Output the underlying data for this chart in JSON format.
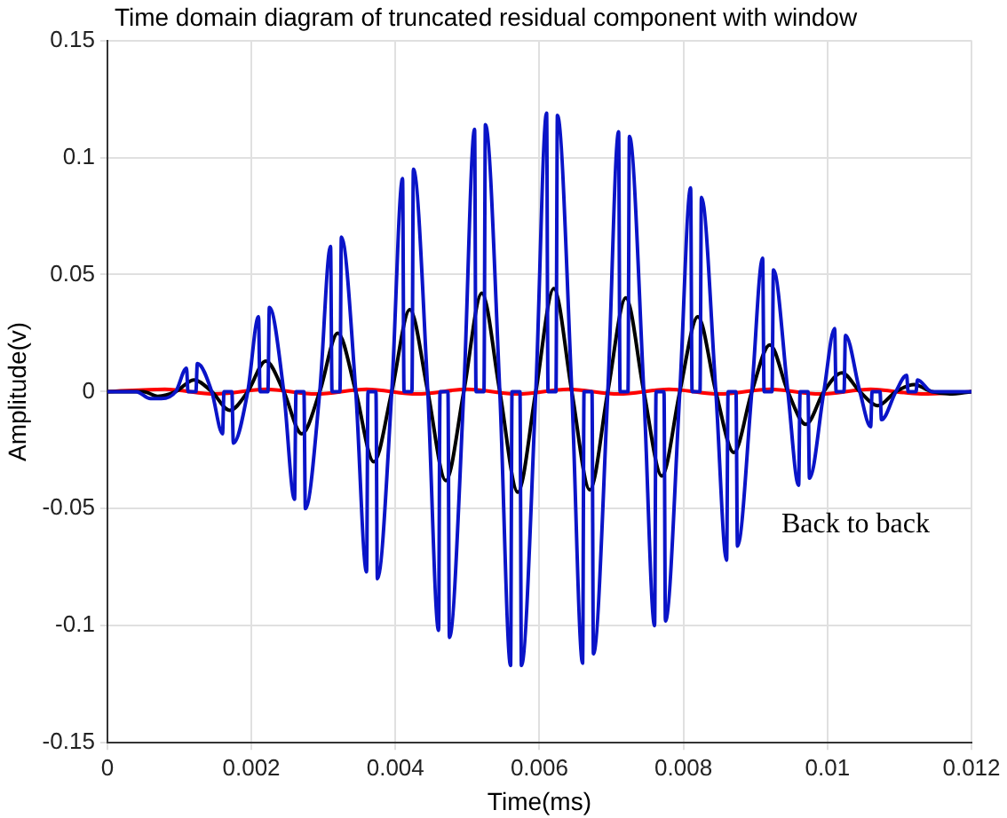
{
  "chart_data": {
    "type": "line",
    "title": "Time domain diagram of truncated residual component with window",
    "xlabel": "Time(ms)",
    "ylabel": "Amplitude(v)",
    "xlim": [
      0,
      0.012
    ],
    "xticks": [
      0,
      0.002,
      0.004,
      0.006,
      0.008,
      0.01,
      0.012
    ],
    "ylim": [
      -0.15,
      0.15
    ],
    "yticks": [
      -0.15,
      -0.1,
      -0.05,
      0,
      0.05,
      0.1,
      0.15
    ],
    "grid": true,
    "legend": false,
    "marker": "none",
    "line_style": "solid",
    "annotations": [
      "Back to back"
    ],
    "series": [
      {
        "color": "#0a14c8",
        "x": [
          0,
          0.0004,
          0.0006,
          0.00075,
          0.00095,
          0.0011,
          0.00112,
          0.00123,
          0.00125,
          0.00145,
          0.0016,
          0.00162,
          0.00173,
          0.00175,
          0.00195,
          0.0021,
          0.00212,
          0.00223,
          0.00225,
          0.00245,
          0.0026,
          0.00262,
          0.00273,
          0.00275,
          0.00295,
          0.0031,
          0.00312,
          0.00323,
          0.00325,
          0.00345,
          0.0036,
          0.00362,
          0.00373,
          0.00375,
          0.00395,
          0.0041,
          0.00412,
          0.00423,
          0.00425,
          0.00445,
          0.0046,
          0.00462,
          0.00473,
          0.00475,
          0.00495,
          0.0051,
          0.00512,
          0.00523,
          0.00525,
          0.00545,
          0.0056,
          0.00562,
          0.00573,
          0.00575,
          0.00595,
          0.0061,
          0.00612,
          0.00623,
          0.00625,
          0.00645,
          0.0066,
          0.00662,
          0.00673,
          0.00675,
          0.00695,
          0.0071,
          0.00712,
          0.00723,
          0.00725,
          0.00745,
          0.0076,
          0.00762,
          0.00773,
          0.00775,
          0.00795,
          0.0081,
          0.00812,
          0.00823,
          0.00825,
          0.00845,
          0.0086,
          0.00862,
          0.00873,
          0.00875,
          0.00895,
          0.0091,
          0.00912,
          0.00923,
          0.00925,
          0.00945,
          0.0096,
          0.00962,
          0.00973,
          0.00975,
          0.00995,
          0.0101,
          0.01012,
          0.01023,
          0.01025,
          0.01045,
          0.0106,
          0.01062,
          0.01073,
          0.01075,
          0.01095,
          0.0111,
          0.01112,
          0.01123,
          0.01125,
          0.01145,
          0.012
        ],
        "values": [
          0,
          0,
          -0.003,
          -0.003,
          0,
          0.01,
          0,
          0,
          0.012,
          0,
          -0.018,
          0,
          0,
          -0.022,
          0,
          0.032,
          0,
          0,
          0.036,
          0,
          -0.046,
          0,
          0,
          -0.05,
          0,
          0.062,
          0,
          0,
          0.066,
          0,
          -0.077,
          0,
          0,
          -0.08,
          0,
          0.091,
          0,
          0,
          0.095,
          0,
          -0.102,
          0,
          0,
          -0.105,
          0,
          0.112,
          0,
          0,
          0.114,
          0,
          -0.117,
          0,
          0,
          -0.117,
          0,
          0.119,
          0,
          0,
          0.118,
          0,
          -0.116,
          0,
          0,
          -0.112,
          0,
          0.111,
          0,
          0,
          0.109,
          0,
          -0.1,
          0,
          0,
          -0.098,
          0,
          0.087,
          0,
          0,
          0.083,
          0,
          -0.072,
          0,
          0,
          -0.066,
          0,
          0.057,
          0,
          0,
          0.052,
          0,
          -0.04,
          0,
          0,
          -0.037,
          0,
          0.027,
          0,
          0,
          0.024,
          0,
          -0.015,
          0,
          0,
          -0.012,
          0,
          0.007,
          0,
          0,
          0.005,
          0,
          0
        ]
      },
      {
        "color": "#000000",
        "x": [
          0,
          0.0005,
          0.0007,
          0.00095,
          0.0012,
          0.00145,
          0.0017,
          0.00195,
          0.0022,
          0.00245,
          0.0027,
          0.00295,
          0.0032,
          0.00345,
          0.0037,
          0.00395,
          0.0042,
          0.00445,
          0.0047,
          0.00495,
          0.0052,
          0.00545,
          0.0057,
          0.00595,
          0.0062,
          0.00645,
          0.0067,
          0.00695,
          0.0072,
          0.00745,
          0.0077,
          0.00795,
          0.0082,
          0.00845,
          0.0087,
          0.00895,
          0.0092,
          0.00945,
          0.0097,
          0.00995,
          0.0102,
          0.01045,
          0.0107,
          0.01095,
          0.0112,
          0.01145,
          0.0117,
          0.012
        ],
        "values": [
          0,
          0,
          -0.002,
          0,
          0.005,
          0,
          -0.008,
          0,
          0.013,
          0,
          -0.018,
          0,
          0.025,
          0,
          -0.03,
          0,
          0.035,
          0,
          -0.038,
          0,
          0.042,
          0,
          -0.043,
          0,
          0.044,
          0,
          -0.042,
          0,
          0.04,
          0,
          -0.036,
          0,
          0.032,
          0,
          -0.026,
          0,
          0.02,
          0,
          -0.014,
          0,
          0.008,
          0,
          -0.006,
          0,
          0.003,
          0,
          -0.001,
          0
        ]
      },
      {
        "color": "#ff0000",
        "x": [
          0,
          0.0008,
          0.0015,
          0.0022,
          0.0029,
          0.0036,
          0.0043,
          0.005,
          0.0057,
          0.0064,
          0.0071,
          0.0078,
          0.0085,
          0.0092,
          0.0099,
          0.0106,
          0.0113,
          0.012
        ],
        "values": [
          0,
          0.001,
          -0.001,
          0.001,
          -0.001,
          0.001,
          -0.001,
          0.001,
          -0.001,
          0.001,
          -0.001,
          0.001,
          -0.001,
          0.001,
          -0.001,
          0.001,
          -0.001,
          0
        ]
      }
    ]
  }
}
